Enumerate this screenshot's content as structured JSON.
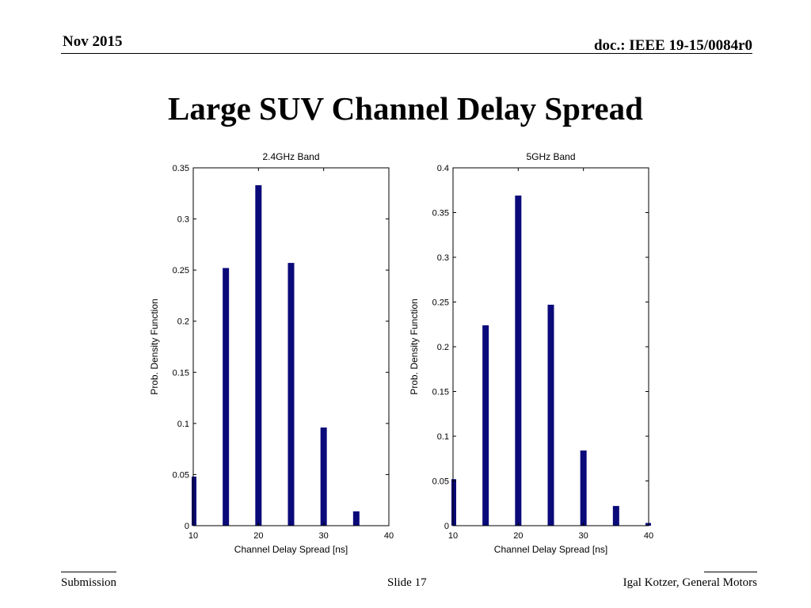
{
  "header": {
    "date": "Nov 2015",
    "doc": "doc.: IEEE 19-15/0084r0"
  },
  "slide": {
    "title": "Large SUV Channel Delay Spread"
  },
  "footer": {
    "left": "Submission",
    "center": "Slide 17",
    "right": "Igal Kotzer, General Motors"
  },
  "colors": {
    "bar": "#0a0a7a",
    "axis": "#000000"
  },
  "chart_data": [
    {
      "type": "bar",
      "title": "2.4GHz Band",
      "xlabel": "Channel Delay Spread [ns]",
      "ylabel": "Prob. Density Function",
      "xlim": [
        10,
        40
      ],
      "ylim": [
        0,
        0.35
      ],
      "xticks": [
        10,
        20,
        30,
        40
      ],
      "yticks": [
        0,
        0.05,
        0.1,
        0.15,
        0.2,
        0.25,
        0.3,
        0.35
      ],
      "x": [
        10,
        15,
        20,
        25,
        30,
        35
      ],
      "values": [
        0.048,
        0.252,
        0.333,
        0.257,
        0.096,
        0.014
      ]
    },
    {
      "type": "bar",
      "title": "5GHz Band",
      "xlabel": "Channel Delay Spread [ns]",
      "ylabel": "Prob. Density Function",
      "xlim": [
        10,
        40
      ],
      "ylim": [
        0,
        0.4
      ],
      "xticks": [
        10,
        20,
        30,
        40
      ],
      "yticks": [
        0,
        0.05,
        0.1,
        0.15,
        0.2,
        0.25,
        0.3,
        0.35,
        0.4
      ],
      "x": [
        10,
        15,
        20,
        25,
        30,
        35,
        40
      ],
      "values": [
        0.052,
        0.224,
        0.369,
        0.247,
        0.084,
        0.022,
        0.003
      ]
    }
  ]
}
